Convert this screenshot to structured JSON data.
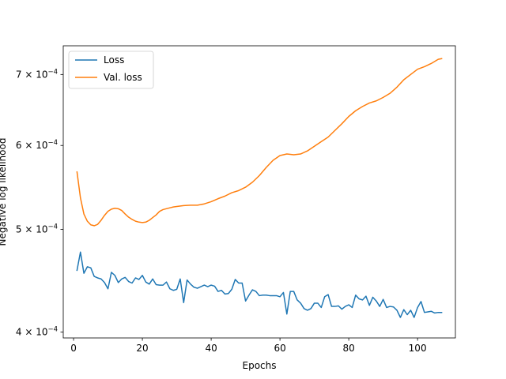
{
  "chart_data": {
    "type": "line",
    "xlabel": "Epochs",
    "ylabel": "Negative log likelihood",
    "y_scale": "log",
    "xlim": [
      -3,
      111
    ],
    "ylim": [
      0.000395,
      0.000745
    ],
    "grid": false,
    "legend_position": "top-left",
    "x_ticks": [
      {
        "value": 0,
        "label": "0"
      },
      {
        "value": 20,
        "label": "20"
      },
      {
        "value": 40,
        "label": "40"
      },
      {
        "value": 60,
        "label": "60"
      },
      {
        "value": 80,
        "label": "80"
      },
      {
        "value": 100,
        "label": "100"
      }
    ],
    "y_ticks": [
      {
        "value": 0.0004,
        "mantissa": "4",
        "exponent": "−4"
      },
      {
        "value": 0.0005,
        "mantissa": "5",
        "exponent": "−4"
      },
      {
        "value": 0.0006,
        "mantissa": "6",
        "exponent": "−4"
      },
      {
        "value": 0.0007,
        "mantissa": "7",
        "exponent": "−4"
      }
    ],
    "series": [
      {
        "name": "Loss",
        "color": "#1f77b4",
        "x": [
          1,
          2,
          3,
          4,
          5,
          6,
          7,
          8,
          9,
          10,
          11,
          12,
          13,
          14,
          15,
          16,
          17,
          18,
          19,
          20,
          21,
          22,
          23,
          24,
          25,
          26,
          27,
          28,
          29,
          30,
          31,
          32,
          33,
          34,
          35,
          36,
          37,
          38,
          39,
          40,
          41,
          42,
          43,
          44,
          45,
          46,
          47,
          48,
          49,
          50,
          51,
          52,
          53,
          54,
          55,
          56,
          57,
          58,
          59,
          60,
          61,
          62,
          63,
          64,
          65,
          66,
          67,
          68,
          69,
          70,
          71,
          72,
          73,
          74,
          75,
          76,
          77,
          78,
          79,
          80,
          81,
          82,
          83,
          84,
          85,
          86,
          87,
          88,
          89,
          90,
          91,
          92,
          93,
          94,
          95,
          96,
          97,
          98,
          99,
          100,
          101,
          102,
          103,
          104,
          105,
          106,
          107
        ],
        "values": [
          0.0004575,
          0.000476,
          0.0004545,
          0.000461,
          0.00046,
          0.0004515,
          0.00045,
          0.000449,
          0.0004455,
          0.0004395,
          0.0004555,
          0.0004525,
          0.0004455,
          0.000449,
          0.0004505,
          0.0004465,
          0.000445,
          0.00045,
          0.0004485,
          0.0004525,
          0.000446,
          0.000444,
          0.000449,
          0.0004435,
          0.000443,
          0.000443,
          0.000446,
          0.0004395,
          0.000438,
          0.000439,
          0.000449,
          0.0004265,
          0.000448,
          0.000444,
          0.000441,
          0.00044,
          0.0004415,
          0.000443,
          0.0004415,
          0.000443,
          0.000442,
          0.000437,
          0.000438,
          0.0004345,
          0.000435,
          0.000439,
          0.0004485,
          0.000445,
          0.000445,
          0.000428,
          0.0004335,
          0.0004385,
          0.000437,
          0.000433,
          0.0004335,
          0.0004335,
          0.000433,
          0.000433,
          0.000433,
          0.000432,
          0.000436,
          0.000416,
          0.000437,
          0.000437,
          0.000429,
          0.000426,
          0.000421,
          0.0004195,
          0.000421,
          0.000426,
          0.000426,
          0.000422,
          0.000432,
          0.000434,
          0.000423,
          0.000423,
          0.0004235,
          0.0004205,
          0.000423,
          0.0004245,
          0.000422,
          0.0004335,
          0.00043,
          0.000429,
          0.0004325,
          0.000424,
          0.0004315,
          0.000428,
          0.000423,
          0.0004295,
          0.000422,
          0.000423,
          0.0004225,
          0.0004195,
          0.000413,
          0.00042,
          0.0004155,
          0.0004195,
          0.000413,
          0.000422,
          0.0004275,
          0.0004175,
          0.000418,
          0.0004185,
          0.000417,
          0.0004175,
          0.0004175
        ]
      },
      {
        "name": "Val. loss",
        "color": "#ff7f0e",
        "x": [
          1,
          2,
          3,
          4,
          5,
          6,
          7,
          8,
          9,
          10,
          11,
          12,
          13,
          14,
          15,
          16,
          17,
          18,
          19,
          20,
          21,
          22,
          23,
          24,
          25,
          26,
          27,
          28,
          29,
          30,
          32,
          34,
          36,
          38,
          40,
          42,
          44,
          46,
          48,
          50,
          52,
          54,
          56,
          58,
          60,
          62,
          64,
          66,
          68,
          70,
          72,
          74,
          76,
          78,
          80,
          82,
          84,
          86,
          88,
          90,
          92,
          94,
          96,
          98,
          100,
          102,
          104,
          106,
          107
        ],
        "values": [
          0.0005665,
          0.0005355,
          0.000517,
          0.000509,
          0.000505,
          0.000504,
          0.0005055,
          0.00051,
          0.0005155,
          0.00052,
          0.0005225,
          0.0005235,
          0.000523,
          0.000521,
          0.000517,
          0.0005135,
          0.000511,
          0.000509,
          0.000508,
          0.0005075,
          0.000508,
          0.00051,
          0.000513,
          0.000516,
          0.00052,
          0.000522,
          0.000523,
          0.000524,
          0.000525,
          0.0005255,
          0.0005265,
          0.000527,
          0.000527,
          0.0005285,
          0.000531,
          0.0005345,
          0.0005375,
          0.0005415,
          0.000544,
          0.000548,
          0.000554,
          0.000562,
          0.000572,
          0.000581,
          0.000587,
          0.000589,
          0.000588,
          0.000589,
          0.000593,
          0.000599,
          0.000605,
          0.000611,
          0.00062,
          0.000629,
          0.000639,
          0.000647,
          0.000653,
          0.000658,
          0.000661,
          0.000666,
          0.000672,
          0.000681,
          0.000692,
          0.0007,
          0.000708,
          0.000712,
          0.000717,
          0.0007235,
          0.0007245
        ]
      }
    ]
  }
}
